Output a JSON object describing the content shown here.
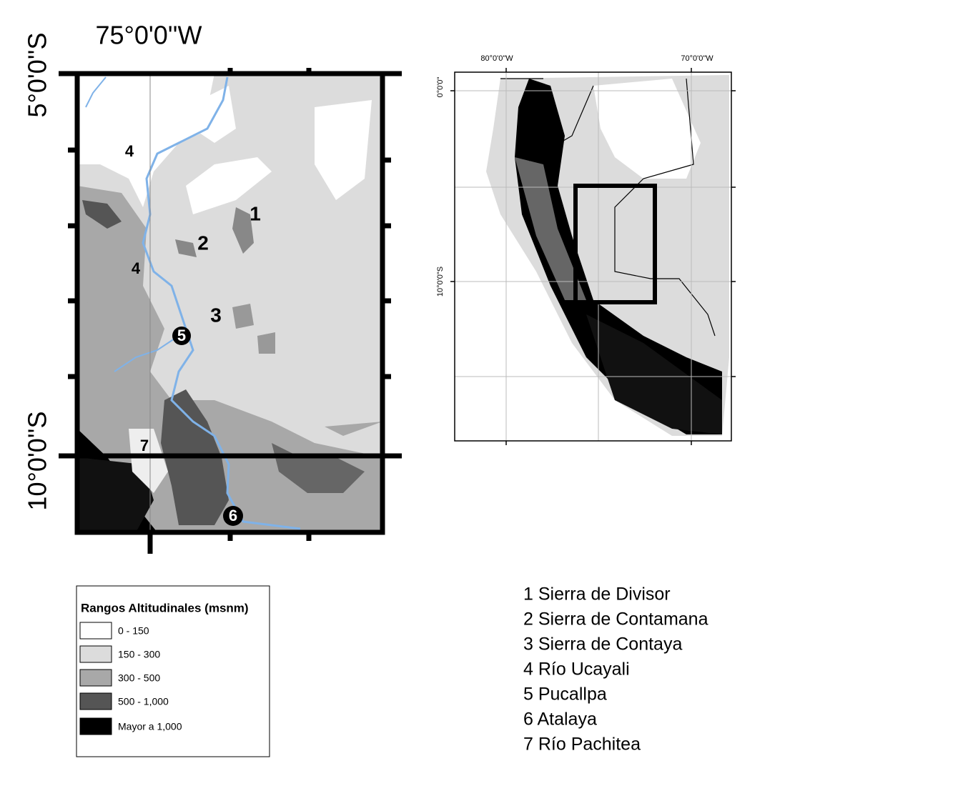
{
  "main_map": {
    "lon_label": "75°0'0''W",
    "lat_labels": [
      "5°0'0''S",
      "10°0'0''S"
    ],
    "markers": [
      "4",
      "1",
      "2",
      "4",
      "3",
      "5",
      "7",
      "6"
    ]
  },
  "inset_map": {
    "lon_labels": [
      "80°0'0\"W",
      "70°0'0\"W"
    ],
    "lat_labels": [
      "0°0'0\"",
      "10°0'0\"S"
    ]
  },
  "legend": {
    "title": "Rangos Altitudinales (msnm)",
    "items": [
      "0 - 150",
      "150 - 300",
      "300 - 500",
      "500 - 1,000",
      "Mayor a 1,000"
    ]
  },
  "key": [
    "1 Sierra de Divisor",
    "2 Sierra de Contamana",
    "3 Sierra de Contaya",
    "4 Río Ucayali",
    "5 Pucallpa",
    "6 Atalaya",
    "7 Río Pachitea"
  ]
}
